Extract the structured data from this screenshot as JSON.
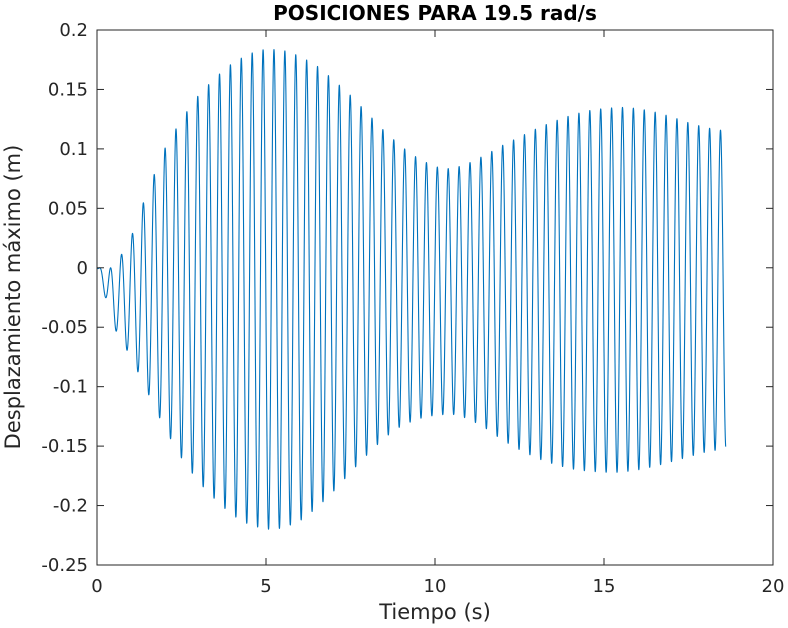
{
  "chart_data": {
    "type": "line",
    "title": "POSICIONES PARA 19.5 rad/s",
    "xlabel": "Tiempo (s)",
    "ylabel": "Desplazamiento máximo (m)",
    "xlim": [
      0,
      20
    ],
    "ylim": [
      -0.25,
      0.2
    ],
    "x_ticks": [
      "0",
      "5",
      "10",
      "15",
      "20"
    ],
    "y_ticks": [
      "0.2",
      "0.15",
      "0.1",
      "0.05",
      "0",
      "-0.05",
      "-0.1",
      "-0.15",
      "-0.2",
      "-0.25"
    ],
    "grid": false,
    "line_color": "#0072BD",
    "series": [
      {
        "frequency_rad_s": 19.5,
        "t_end": 18.6,
        "envelope_upper": [
          [
            0,
            0.0
          ],
          [
            0.5,
            0.0
          ],
          [
            1.0,
            0.025
          ],
          [
            1.5,
            0.065
          ],
          [
            2.0,
            0.1
          ],
          [
            2.5,
            0.125
          ],
          [
            3.0,
            0.145
          ],
          [
            3.5,
            0.16
          ],
          [
            4.0,
            0.172
          ],
          [
            4.5,
            0.18
          ],
          [
            5.0,
            0.184
          ],
          [
            5.5,
            0.183
          ],
          [
            6.0,
            0.178
          ],
          [
            6.5,
            0.17
          ],
          [
            7.0,
            0.158
          ],
          [
            7.5,
            0.145
          ],
          [
            8.0,
            0.13
          ],
          [
            8.5,
            0.115
          ],
          [
            9.0,
            0.102
          ],
          [
            9.5,
            0.092
          ],
          [
            10.0,
            0.085
          ],
          [
            10.5,
            0.083
          ],
          [
            11.0,
            0.088
          ],
          [
            11.5,
            0.095
          ],
          [
            12.0,
            0.103
          ],
          [
            12.5,
            0.11
          ],
          [
            13.0,
            0.117
          ],
          [
            13.5,
            0.123
          ],
          [
            14.0,
            0.128
          ],
          [
            14.5,
            0.132
          ],
          [
            15.0,
            0.134
          ],
          [
            15.5,
            0.135
          ],
          [
            16.0,
            0.134
          ],
          [
            16.5,
            0.131
          ],
          [
            17.0,
            0.127
          ],
          [
            17.5,
            0.122
          ],
          [
            18.0,
            0.118
          ],
          [
            18.6,
            0.115
          ]
        ],
        "envelope_lower": [
          [
            0,
            0.0
          ],
          [
            0.5,
            -0.05
          ],
          [
            1.0,
            -0.075
          ],
          [
            1.5,
            -0.105
          ],
          [
            2.0,
            -0.135
          ],
          [
            2.5,
            -0.16
          ],
          [
            3.0,
            -0.18
          ],
          [
            3.5,
            -0.195
          ],
          [
            4.0,
            -0.208
          ],
          [
            4.5,
            -0.216
          ],
          [
            5.0,
            -0.22
          ],
          [
            5.5,
            -0.219
          ],
          [
            6.0,
            -0.213
          ],
          [
            6.5,
            -0.202
          ],
          [
            7.0,
            -0.188
          ],
          [
            7.5,
            -0.172
          ],
          [
            8.0,
            -0.157
          ],
          [
            8.5,
            -0.143
          ],
          [
            9.0,
            -0.133
          ],
          [
            9.5,
            -0.127
          ],
          [
            10.0,
            -0.124
          ],
          [
            10.5,
            -0.123
          ],
          [
            11.0,
            -0.127
          ],
          [
            11.5,
            -0.135
          ],
          [
            12.0,
            -0.145
          ],
          [
            12.5,
            -0.153
          ],
          [
            13.0,
            -0.16
          ],
          [
            13.5,
            -0.165
          ],
          [
            14.0,
            -0.169
          ],
          [
            14.5,
            -0.171
          ],
          [
            15.0,
            -0.172
          ],
          [
            15.5,
            -0.172
          ],
          [
            16.0,
            -0.17
          ],
          [
            16.5,
            -0.167
          ],
          [
            17.0,
            -0.163
          ],
          [
            17.5,
            -0.159
          ],
          [
            18.0,
            -0.155
          ],
          [
            18.6,
            -0.152
          ]
        ]
      }
    ]
  }
}
